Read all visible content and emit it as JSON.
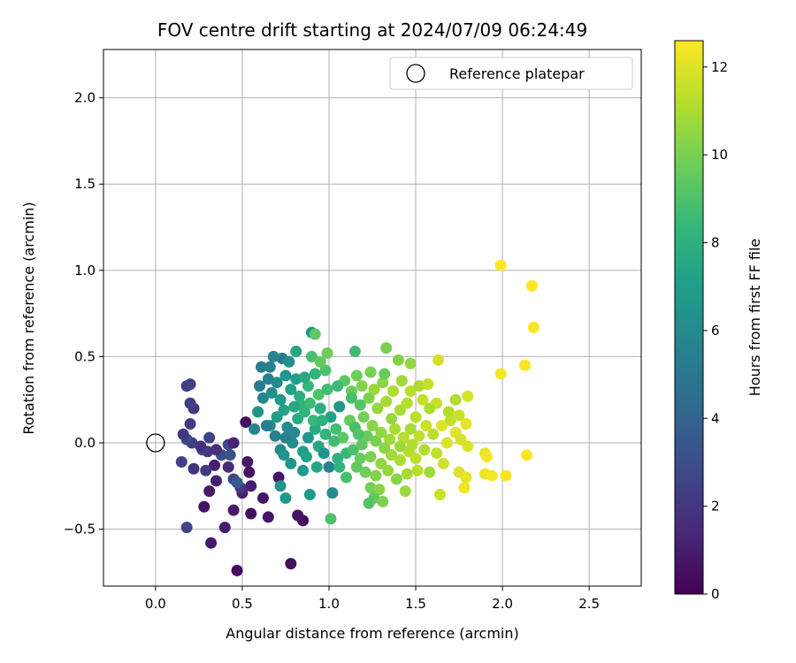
{
  "chart_data": {
    "type": "scatter",
    "title": "FOV centre drift starting at 2024/07/09 06:24:49",
    "xlabel": "Angular distance from reference (arcmin)",
    "ylabel": "Rotation from reference (arcmin)",
    "xlim": [
      -0.3,
      2.8
    ],
    "ylim": [
      -0.83,
      2.28
    ],
    "xticks": [
      0.0,
      0.5,
      1.0,
      1.5,
      2.0,
      2.5
    ],
    "xtick_labels": [
      "0.0",
      "0.5",
      "1.0",
      "1.5",
      "2.0",
      "2.5"
    ],
    "yticks": [
      -0.5,
      0.0,
      0.5,
      1.0,
      1.5,
      2.0
    ],
    "ytick_labels": [
      "−0.5",
      "0.0",
      "0.5",
      "1.0",
      "1.5",
      "2.0"
    ],
    "grid": true,
    "legend": {
      "placement": "top-right",
      "entries": [
        "Reference platepar"
      ]
    },
    "reference_point": {
      "x": 0.0,
      "y": 0.0
    },
    "colorbar": {
      "label": "Hours from first FF file",
      "range": [
        0,
        12.6
      ],
      "ticks": [
        0,
        2,
        4,
        6,
        8,
        10,
        12
      ],
      "tick_labels": [
        "0",
        "2",
        "4",
        "6",
        "8",
        "10",
        "12"
      ],
      "colormap": "viridis",
      "stops": [
        "#440154",
        "#482878",
        "#3e4989",
        "#31688e",
        "#26828e",
        "#1f9e89",
        "#35b779",
        "#6ece58",
        "#b5de2b",
        "#fde725"
      ]
    },
    "points": [
      {
        "x": 0.47,
        "y": -0.74,
        "c": 0.3
      },
      {
        "x": 0.78,
        "y": -0.7,
        "c": 0.5
      },
      {
        "x": 0.32,
        "y": -0.58,
        "c": 0.8
      },
      {
        "x": 0.4,
        "y": -0.49,
        "c": 1.0
      },
      {
        "x": 0.85,
        "y": -0.45,
        "c": 0.4
      },
      {
        "x": 0.82,
        "y": -0.42,
        "c": 0.6
      },
      {
        "x": 0.65,
        "y": -0.43,
        "c": 0.7
      },
      {
        "x": 0.55,
        "y": -0.41,
        "c": 0.5
      },
      {
        "x": 0.45,
        "y": -0.39,
        "c": 0.9
      },
      {
        "x": 0.28,
        "y": -0.37,
        "c": 0.6
      },
      {
        "x": 0.62,
        "y": -0.32,
        "c": 0.8
      },
      {
        "x": 0.5,
        "y": -0.29,
        "c": 1.1
      },
      {
        "x": 0.31,
        "y": -0.28,
        "c": 0.9
      },
      {
        "x": 0.55,
        "y": -0.25,
        "c": 1.0
      },
      {
        "x": 0.35,
        "y": -0.22,
        "c": 1.2
      },
      {
        "x": 0.71,
        "y": -0.2,
        "c": 0.7
      },
      {
        "x": 0.45,
        "y": -0.21,
        "c": 2.6
      },
      {
        "x": 0.34,
        "y": -0.13,
        "c": 1.1
      },
      {
        "x": 0.42,
        "y": -0.14,
        "c": 1.5
      },
      {
        "x": 0.22,
        "y": -0.15,
        "c": 1.9
      },
      {
        "x": 0.29,
        "y": -0.16,
        "c": 2.2
      },
      {
        "x": 0.54,
        "y": -0.17,
        "c": 0.6
      },
      {
        "x": 0.53,
        "y": -0.11,
        "c": 0.8
      },
      {
        "x": 0.15,
        "y": -0.11,
        "c": 2.5
      },
      {
        "x": 0.38,
        "y": -0.07,
        "c": 2.9
      },
      {
        "x": 0.43,
        "y": -0.07,
        "c": 3.2
      },
      {
        "x": 0.3,
        "y": -0.05,
        "c": 2.0
      },
      {
        "x": 0.27,
        "y": -0.04,
        "c": 2.4
      },
      {
        "x": 0.35,
        "y": -0.04,
        "c": 1.6
      },
      {
        "x": 0.26,
        "y": -0.02,
        "c": 1.8
      },
      {
        "x": 0.21,
        "y": 0.0,
        "c": 2.3
      },
      {
        "x": 0.42,
        "y": -0.01,
        "c": 2.8
      },
      {
        "x": 0.45,
        "y": 0.0,
        "c": 1.2
      },
      {
        "x": 0.31,
        "y": 0.03,
        "c": 2.6
      },
      {
        "x": 0.18,
        "y": 0.02,
        "c": 2.7
      },
      {
        "x": 0.16,
        "y": 0.05,
        "c": 2.1
      },
      {
        "x": 0.52,
        "y": 0.12,
        "c": 0.5
      },
      {
        "x": 0.2,
        "y": 0.11,
        "c": 2.2
      },
      {
        "x": 0.22,
        "y": 0.2,
        "c": 2.0
      },
      {
        "x": 0.2,
        "y": 0.23,
        "c": 2.4
      },
      {
        "x": 0.18,
        "y": 0.33,
        "c": 2.3
      },
      {
        "x": 0.2,
        "y": 0.34,
        "c": 2.5
      },
      {
        "x": 0.49,
        "y": -0.26,
        "c": 2.1
      },
      {
        "x": 0.47,
        "y": -0.23,
        "c": 3.5
      },
      {
        "x": 0.18,
        "y": -0.49,
        "c": 2.6
      },
      {
        "x": 0.72,
        "y": -0.25,
        "c": 6.3
      },
      {
        "x": 0.75,
        "y": -0.32,
        "c": 6.7
      },
      {
        "x": 0.89,
        "y": -0.3,
        "c": 6.9
      },
      {
        "x": 1.02,
        "y": -0.29,
        "c": 6.1
      },
      {
        "x": 1.01,
        "y": -0.44,
        "c": 9.0
      },
      {
        "x": 0.78,
        "y": -0.12,
        "c": 6.5
      },
      {
        "x": 0.85,
        "y": -0.16,
        "c": 6.8
      },
      {
        "x": 0.93,
        "y": -0.14,
        "c": 7.4
      },
      {
        "x": 1.0,
        "y": -0.14,
        "c": 5.6
      },
      {
        "x": 0.72,
        "y": -0.04,
        "c": 5.9
      },
      {
        "x": 0.79,
        "y": 0.0,
        "c": 6.2
      },
      {
        "x": 0.85,
        "y": -0.05,
        "c": 7.0
      },
      {
        "x": 0.94,
        "y": -0.02,
        "c": 7.5
      },
      {
        "x": 0.97,
        "y": -0.06,
        "c": 6.4
      },
      {
        "x": 1.05,
        "y": -0.09,
        "c": 8.0
      },
      {
        "x": 1.1,
        "y": -0.06,
        "c": 8.5
      },
      {
        "x": 0.75,
        "y": 0.03,
        "c": 5.5
      },
      {
        "x": 0.8,
        "y": 0.06,
        "c": 6.0
      },
      {
        "x": 0.88,
        "y": 0.03,
        "c": 6.6
      },
      {
        "x": 0.92,
        "y": 0.08,
        "c": 7.6
      },
      {
        "x": 0.98,
        "y": 0.05,
        "c": 8.2
      },
      {
        "x": 1.04,
        "y": 0.08,
        "c": 8.8
      },
      {
        "x": 1.08,
        "y": 0.03,
        "c": 9.3
      },
      {
        "x": 0.57,
        "y": 0.08,
        "c": 5.7
      },
      {
        "x": 0.66,
        "y": 0.1,
        "c": 6.1
      },
      {
        "x": 0.59,
        "y": 0.18,
        "c": 6.4
      },
      {
        "x": 0.7,
        "y": 0.15,
        "c": 6.9
      },
      {
        "x": 0.74,
        "y": 0.19,
        "c": 7.3
      },
      {
        "x": 0.82,
        "y": 0.14,
        "c": 7.7
      },
      {
        "x": 0.86,
        "y": 0.18,
        "c": 8.1
      },
      {
        "x": 0.91,
        "y": 0.13,
        "c": 8.5
      },
      {
        "x": 0.95,
        "y": 0.2,
        "c": 7.9
      },
      {
        "x": 1.01,
        "y": 0.15,
        "c": 7.1
      },
      {
        "x": 1.06,
        "y": 0.21,
        "c": 6.6
      },
      {
        "x": 0.62,
        "y": 0.26,
        "c": 5.8
      },
      {
        "x": 0.67,
        "y": 0.29,
        "c": 6.2
      },
      {
        "x": 0.72,
        "y": 0.25,
        "c": 6.7
      },
      {
        "x": 0.78,
        "y": 0.31,
        "c": 7.2
      },
      {
        "x": 0.83,
        "y": 0.27,
        "c": 7.8
      },
      {
        "x": 0.88,
        "y": 0.33,
        "c": 8.4
      },
      {
        "x": 0.94,
        "y": 0.28,
        "c": 9.1
      },
      {
        "x": 0.99,
        "y": 0.31,
        "c": 8.7
      },
      {
        "x": 0.6,
        "y": 0.33,
        "c": 5.4
      },
      {
        "x": 0.65,
        "y": 0.37,
        "c": 5.6
      },
      {
        "x": 0.7,
        "y": 0.35,
        "c": 6.0
      },
      {
        "x": 0.75,
        "y": 0.39,
        "c": 6.5
      },
      {
        "x": 0.81,
        "y": 0.37,
        "c": 7.0
      },
      {
        "x": 0.86,
        "y": 0.38,
        "c": 7.6
      },
      {
        "x": 0.92,
        "y": 0.4,
        "c": 8.3
      },
      {
        "x": 0.98,
        "y": 0.42,
        "c": 9.0
      },
      {
        "x": 0.61,
        "y": 0.44,
        "c": 5.2
      },
      {
        "x": 0.66,
        "y": 0.44,
        "c": 5.5
      },
      {
        "x": 0.73,
        "y": 0.49,
        "c": 5.3
      },
      {
        "x": 0.68,
        "y": 0.5,
        "c": 5.7
      },
      {
        "x": 0.77,
        "y": 0.47,
        "c": 6.3
      },
      {
        "x": 0.81,
        "y": 0.53,
        "c": 7.4
      },
      {
        "x": 0.9,
        "y": 0.5,
        "c": 8.9
      },
      {
        "x": 0.95,
        "y": 0.47,
        "c": 9.5
      },
      {
        "x": 0.9,
        "y": 0.64,
        "c": 6.8
      },
      {
        "x": 0.92,
        "y": 0.63,
        "c": 9.4
      },
      {
        "x": 0.99,
        "y": 0.52,
        "c": 9.8
      },
      {
        "x": 1.15,
        "y": 0.53,
        "c": 8.7
      },
      {
        "x": 0.64,
        "y": 0.1,
        "c": 5.3
      },
      {
        "x": 0.84,
        "y": 0.22,
        "c": 8.2
      },
      {
        "x": 0.89,
        "y": 0.23,
        "c": 8.6
      },
      {
        "x": 0.8,
        "y": 0.21,
        "c": 7.5
      },
      {
        "x": 1.12,
        "y": 0.13,
        "c": 9.6
      },
      {
        "x": 1.15,
        "y": 0.09,
        "c": 8.9
      },
      {
        "x": 1.2,
        "y": 0.15,
        "c": 9.9
      },
      {
        "x": 1.25,
        "y": 0.1,
        "c": 10.3
      },
      {
        "x": 1.18,
        "y": 0.22,
        "c": 9.2
      },
      {
        "x": 1.23,
        "y": 0.26,
        "c": 10.1
      },
      {
        "x": 1.28,
        "y": 0.2,
        "c": 10.6
      },
      {
        "x": 1.33,
        "y": 0.24,
        "c": 10.9
      },
      {
        "x": 1.13,
        "y": 0.3,
        "c": 9.7
      },
      {
        "x": 1.19,
        "y": 0.33,
        "c": 10.2
      },
      {
        "x": 1.26,
        "y": 0.31,
        "c": 10.7
      },
      {
        "x": 1.31,
        "y": 0.35,
        "c": 10.4
      },
      {
        "x": 1.37,
        "y": 0.3,
        "c": 11.1
      },
      {
        "x": 1.42,
        "y": 0.36,
        "c": 10.8
      },
      {
        "x": 1.47,
        "y": 0.3,
        "c": 11.3
      },
      {
        "x": 1.52,
        "y": 0.33,
        "c": 11.0
      },
      {
        "x": 1.57,
        "y": 0.34,
        "c": 11.5
      },
      {
        "x": 1.16,
        "y": 0.39,
        "c": 9.8
      },
      {
        "x": 1.24,
        "y": 0.41,
        "c": 10.0
      },
      {
        "x": 1.32,
        "y": 0.4,
        "c": 9.6
      },
      {
        "x": 1.4,
        "y": 0.48,
        "c": 10.2
      },
      {
        "x": 1.47,
        "y": 0.46,
        "c": 10.5
      },
      {
        "x": 1.33,
        "y": 0.55,
        "c": 10.0
      },
      {
        "x": 1.63,
        "y": 0.48,
        "c": 11.7
      },
      {
        "x": 1.14,
        "y": -0.04,
        "c": 9.0
      },
      {
        "x": 1.19,
        "y": -0.01,
        "c": 9.4
      },
      {
        "x": 1.22,
        "y": 0.04,
        "c": 9.7
      },
      {
        "x": 1.27,
        "y": 0.01,
        "c": 10.0
      },
      {
        "x": 1.3,
        "y": 0.06,
        "c": 10.5
      },
      {
        "x": 1.35,
        "y": 0.02,
        "c": 10.8
      },
      {
        "x": 1.38,
        "y": 0.08,
        "c": 11.0
      },
      {
        "x": 1.43,
        "y": 0.03,
        "c": 11.2
      },
      {
        "x": 1.47,
        "y": 0.08,
        "c": 10.9
      },
      {
        "x": 1.52,
        "y": 0.04,
        "c": 11.4
      },
      {
        "x": 1.56,
        "y": 0.1,
        "c": 11.6
      },
      {
        "x": 1.6,
        "y": 0.05,
        "c": 11.3
      },
      {
        "x": 1.18,
        "y": -0.09,
        "c": 9.6
      },
      {
        "x": 1.24,
        "y": -0.08,
        "c": 10.1
      },
      {
        "x": 1.3,
        "y": -0.12,
        "c": 10.5
      },
      {
        "x": 1.36,
        "y": -0.07,
        "c": 10.8
      },
      {
        "x": 1.41,
        "y": -0.1,
        "c": 11.0
      },
      {
        "x": 1.46,
        "y": -0.05,
        "c": 11.2
      },
      {
        "x": 1.5,
        "y": -0.09,
        "c": 11.4
      },
      {
        "x": 1.55,
        "y": -0.04,
        "c": 11.1
      },
      {
        "x": 1.21,
        "y": -0.17,
        "c": 9.8
      },
      {
        "x": 1.27,
        "y": -0.19,
        "c": 10.2
      },
      {
        "x": 1.34,
        "y": -0.16,
        "c": 10.6
      },
      {
        "x": 1.39,
        "y": -0.21,
        "c": 10.3
      },
      {
        "x": 1.45,
        "y": -0.18,
        "c": 10.9
      },
      {
        "x": 1.51,
        "y": -0.16,
        "c": 11.3
      },
      {
        "x": 1.24,
        "y": -0.26,
        "c": 9.9
      },
      {
        "x": 1.29,
        "y": -0.27,
        "c": 10.4
      },
      {
        "x": 1.26,
        "y": -0.32,
        "c": 9.5
      },
      {
        "x": 1.31,
        "y": -0.34,
        "c": 10.1
      },
      {
        "x": 1.23,
        "y": -0.35,
        "c": 9.2
      },
      {
        "x": 1.44,
        "y": -0.28,
        "c": 10.7
      },
      {
        "x": 1.64,
        "y": -0.3,
        "c": 11.6
      },
      {
        "x": 1.58,
        "y": -0.17,
        "c": 10.8
      },
      {
        "x": 1.62,
        "y": -0.06,
        "c": 11.4
      },
      {
        "x": 1.66,
        "y": -0.12,
        "c": 11.7
      },
      {
        "x": 1.68,
        "y": 0.0,
        "c": 11.9
      },
      {
        "x": 1.65,
        "y": 0.1,
        "c": 12.0
      },
      {
        "x": 1.7,
        "y": 0.13,
        "c": 11.5
      },
      {
        "x": 1.73,
        "y": 0.06,
        "c": 12.1
      },
      {
        "x": 1.76,
        "y": 0.02,
        "c": 11.8
      },
      {
        "x": 1.79,
        "y": 0.11,
        "c": 12.2
      },
      {
        "x": 1.8,
        "y": -0.02,
        "c": 11.9
      },
      {
        "x": 1.69,
        "y": 0.18,
        "c": 11.2
      },
      {
        "x": 1.75,
        "y": 0.16,
        "c": 11.6
      },
      {
        "x": 1.8,
        "y": 0.27,
        "c": 11.8
      },
      {
        "x": 1.73,
        "y": 0.25,
        "c": 11.1
      },
      {
        "x": 1.62,
        "y": 0.23,
        "c": 11.6
      },
      {
        "x": 1.58,
        "y": 0.2,
        "c": 11.0
      },
      {
        "x": 1.75,
        "y": -0.17,
        "c": 12.0
      },
      {
        "x": 1.79,
        "y": -0.2,
        "c": 12.2
      },
      {
        "x": 1.78,
        "y": -0.26,
        "c": 12.3
      },
      {
        "x": 1.9,
        "y": -0.06,
        "c": 12.2
      },
      {
        "x": 1.91,
        "y": -0.08,
        "c": 12.4
      },
      {
        "x": 1.9,
        "y": -0.18,
        "c": 12.3
      },
      {
        "x": 1.94,
        "y": -0.19,
        "c": 12.4
      },
      {
        "x": 2.02,
        "y": -0.19,
        "c": 12.5
      },
      {
        "x": 2.14,
        "y": -0.07,
        "c": 12.5
      },
      {
        "x": 1.99,
        "y": 0.4,
        "c": 12.4
      },
      {
        "x": 2.13,
        "y": 0.45,
        "c": 12.5
      },
      {
        "x": 2.18,
        "y": 0.67,
        "c": 12.5
      },
      {
        "x": 2.17,
        "y": 0.91,
        "c": 12.6
      },
      {
        "x": 1.99,
        "y": 1.03,
        "c": 12.6
      },
      {
        "x": 1.16,
        "y": -0.14,
        "c": 9.5
      },
      {
        "x": 1.1,
        "y": -0.2,
        "c": 8.9
      },
      {
        "x": 1.06,
        "y": -0.14,
        "c": 8.3
      },
      {
        "x": 1.13,
        "y": 0.26,
        "c": 8.9
      },
      {
        "x": 1.09,
        "y": 0.36,
        "c": 9.3
      },
      {
        "x": 1.05,
        "y": 0.33,
        "c": 8.6
      },
      {
        "x": 1.17,
        "y": 0.05,
        "c": 9.1
      },
      {
        "x": 1.36,
        "y": 0.14,
        "c": 10.6
      },
      {
        "x": 1.41,
        "y": 0.19,
        "c": 10.9
      },
      {
        "x": 1.45,
        "y": 0.23,
        "c": 11.2
      },
      {
        "x": 1.5,
        "y": 0.15,
        "c": 11.3
      },
      {
        "x": 1.54,
        "y": 0.25,
        "c": 11.5
      },
      {
        "x": 1.48,
        "y": -0.01,
        "c": 11.1
      },
      {
        "x": 1.41,
        "y": -0.02,
        "c": 10.7
      },
      {
        "x": 1.32,
        "y": -0.03,
        "c": 10.3
      },
      {
        "x": 0.76,
        "y": 0.09,
        "c": 6.0
      },
      {
        "x": 0.69,
        "y": 0.04,
        "c": 5.5
      },
      {
        "x": 0.74,
        "y": -0.07,
        "c": 6.6
      },
      {
        "x": 0.96,
        "y": 0.13,
        "c": 8.0
      },
      {
        "x": 1.03,
        "y": 0.01,
        "c": 8.7
      },
      {
        "x": 0.87,
        "y": -0.08,
        "c": 7.3
      }
    ]
  }
}
